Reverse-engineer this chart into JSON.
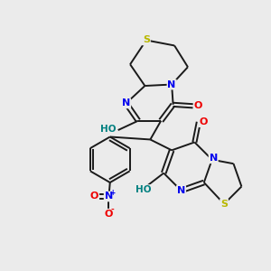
{
  "background_color": "#ebebeb",
  "bond_color": "#1a1a1a",
  "atom_colors": {
    "S": "#b8b800",
    "N": "#0000ee",
    "O": "#ee0000",
    "H": "#008080",
    "C": "#1a1a1a"
  },
  "figsize": [
    3.0,
    3.0
  ],
  "dpi": 100
}
